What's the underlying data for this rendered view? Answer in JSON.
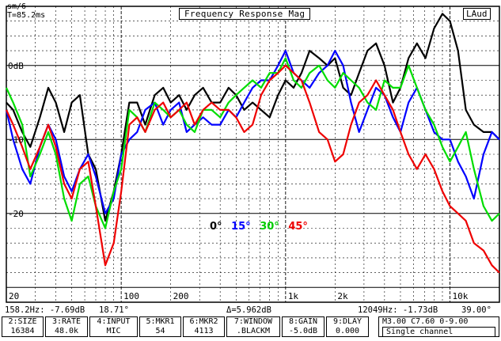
{
  "title": "Frequency Response Mag",
  "mode": "LAud",
  "top_left": {
    "scale": "sm/6",
    "time": "T=85.2ms"
  },
  "legend_colors": {
    "black": "#000000",
    "blue": "#0000ff",
    "green": "#00dd00",
    "red": "#ee0000"
  },
  "chart_data": {
    "type": "line",
    "xscale": "log",
    "xlim": [
      20,
      20000
    ],
    "ylim": [
      -32,
      8
    ],
    "y_tick_labels": [
      {
        "value": 0,
        "label": "0dB"
      },
      {
        "value": -10,
        "label": "-10"
      },
      {
        "value": -20,
        "label": "-20"
      }
    ],
    "x_tick_labels": [
      {
        "value": 20,
        "label": "20"
      },
      {
        "value": 100,
        "label": "100"
      },
      {
        "value": 200,
        "label": "200"
      },
      {
        "value": 1000,
        "label": "1k"
      },
      {
        "value": 2000,
        "label": "2k"
      },
      {
        "value": 10000,
        "label": "10k"
      }
    ],
    "grid": true,
    "legend_position": "center",
    "series": [
      {
        "name": "0°",
        "color": "#000000",
        "x": [
          20,
          22,
          25,
          28,
          32,
          36,
          40,
          45,
          50,
          56,
          63,
          70,
          80,
          90,
          100,
          112,
          125,
          140,
          160,
          180,
          200,
          225,
          250,
          280,
          315,
          355,
          400,
          450,
          500,
          560,
          630,
          710,
          800,
          900,
          1000,
          1120,
          1250,
          1400,
          1600,
          1800,
          2000,
          2240,
          2500,
          2800,
          3150,
          3550,
          4000,
          4500,
          5000,
          5600,
          6300,
          7100,
          8000,
          9000,
          10000,
          11200,
          12500,
          14000,
          16000,
          18000,
          20000
        ],
        "y": [
          -5,
          -6,
          -9,
          -11,
          -7,
          -3,
          -5,
          -9,
          -5,
          -4,
          -12,
          -14,
          -21,
          -17,
          -12,
          -5,
          -5,
          -8,
          -4,
          -3,
          -5,
          -4,
          -6,
          -4,
          -3,
          -5,
          -5,
          -3,
          -4,
          -6,
          -5,
          -6,
          -7,
          -4,
          -2,
          -3,
          -1,
          2,
          1,
          0,
          1,
          -3,
          -4,
          -1,
          2,
          3,
          0,
          -5,
          -3,
          1,
          3,
          1,
          5,
          7,
          6,
          2,
          -6,
          -8,
          -9,
          -9,
          -10
        ]
      },
      {
        "name": "15°",
        "color": "#0000ff",
        "x": [
          20,
          22,
          25,
          28,
          32,
          36,
          40,
          45,
          50,
          56,
          63,
          70,
          80,
          90,
          100,
          112,
          125,
          140,
          160,
          180,
          200,
          225,
          250,
          280,
          315,
          355,
          400,
          450,
          500,
          560,
          630,
          710,
          800,
          900,
          1000,
          1120,
          1250,
          1400,
          1600,
          1800,
          2000,
          2240,
          2500,
          2800,
          3150,
          3550,
          4000,
          4500,
          5000,
          5600,
          6300,
          7100,
          8000,
          9000,
          10000,
          11200,
          12500,
          14000,
          16000,
          18000,
          20000
        ],
        "y": [
          -6,
          -10,
          -14,
          -16,
          -11,
          -8,
          -10,
          -15,
          -17,
          -14,
          -12,
          -15,
          -20,
          -18,
          -12,
          -10,
          -9,
          -6,
          -5,
          -8,
          -6,
          -5,
          -9,
          -8,
          -7,
          -8,
          -8,
          -6,
          -7,
          -5,
          -3,
          -2,
          -2,
          0,
          2,
          -1,
          -2,
          -3,
          -1,
          0,
          2,
          0,
          -5,
          -9,
          -6,
          -3,
          -4,
          -7,
          -9,
          -5,
          -3,
          -6,
          -9,
          -10,
          -10,
          -13,
          -15,
          -18,
          -12,
          -9,
          -10
        ]
      },
      {
        "name": "30°",
        "color": "#00dd00",
        "x": [
          20,
          22,
          25,
          28,
          32,
          36,
          40,
          45,
          50,
          56,
          63,
          70,
          80,
          90,
          100,
          112,
          125,
          140,
          160,
          180,
          200,
          225,
          250,
          280,
          315,
          355,
          400,
          450,
          500,
          560,
          630,
          710,
          800,
          900,
          1000,
          1120,
          1250,
          1400,
          1600,
          1800,
          2000,
          2240,
          2500,
          2800,
          3150,
          3550,
          4000,
          4500,
          5000,
          5600,
          6300,
          7100,
          8000,
          9000,
          10000,
          11200,
          12500,
          14000,
          16000,
          18000,
          20000
        ],
        "y": [
          -3,
          -5,
          -8,
          -15,
          -12,
          -9,
          -12,
          -18,
          -21,
          -16,
          -15,
          -19,
          -22,
          -17,
          -14,
          -6,
          -7,
          -9,
          -5,
          -6,
          -7,
          -6,
          -8,
          -9,
          -6,
          -6,
          -7,
          -5,
          -4,
          -3,
          -2,
          -3,
          -1,
          -1,
          1,
          -2,
          -3,
          -1,
          0,
          -2,
          -3,
          -1,
          -2,
          -3,
          -5,
          -6,
          -2,
          -3,
          -3,
          0,
          -3,
          -6,
          -8,
          -11,
          -13,
          -11,
          -9,
          -14,
          -19,
          -21,
          -20
        ]
      },
      {
        "name": "45°",
        "color": "#ee0000",
        "x": [
          20,
          22,
          25,
          28,
          32,
          36,
          40,
          45,
          50,
          56,
          63,
          70,
          80,
          90,
          100,
          112,
          125,
          140,
          160,
          180,
          200,
          225,
          250,
          280,
          315,
          355,
          400,
          450,
          500,
          560,
          630,
          710,
          800,
          900,
          1000,
          1120,
          1250,
          1400,
          1600,
          1800,
          2000,
          2240,
          2500,
          2800,
          3150,
          3550,
          4000,
          4500,
          5000,
          5600,
          6300,
          7100,
          8000,
          9000,
          10000,
          11200,
          12500,
          14000,
          16000,
          18000,
          20000
        ],
        "y": [
          -6,
          -8,
          -11,
          -14,
          -11,
          -8,
          -11,
          -16,
          -18,
          -14,
          -13,
          -19,
          -27,
          -24,
          -17,
          -8,
          -7,
          -9,
          -6,
          -5,
          -7,
          -6,
          -5,
          -8,
          -6,
          -5,
          -6,
          -6,
          -7,
          -9,
          -8,
          -4,
          -2,
          -1,
          0,
          -1,
          -2,
          -5,
          -9,
          -10,
          -13,
          -12,
          -8,
          -5,
          -4,
          -2,
          -4,
          -6,
          -9,
          -12,
          -14,
          -12,
          -14,
          -17,
          -19,
          -20,
          -21,
          -24,
          -25,
          -27,
          -28
        ]
      }
    ]
  },
  "readout": {
    "cursor1": "158.2Hz: -7.69dB",
    "cursor1_phase": "18.71°",
    "delta": "Δ=5.962dB",
    "cursor2": "12049Hz: -1.73dB",
    "cursor2_phase": "39.00°"
  },
  "params": [
    {
      "label": "2:SIZE",
      "value": "16384"
    },
    {
      "label": "3:RATE",
      "value": "48.0k"
    },
    {
      "label": "4:INPUT",
      "value": "MIC"
    },
    {
      "label": "5:MKR1",
      "value": "54"
    },
    {
      "label": "6:MKR2",
      "value": "4113"
    },
    {
      "label": "7:WINDOW",
      "value": ".BLACKM"
    },
    {
      "label": "8:GAIN",
      "value": "-5.0dB"
    },
    {
      "label": "9:DLAY",
      "value": "0.000"
    }
  ],
  "right_box": {
    "line1": "M3.00 C7.60 0-9.00",
    "line2": "Single channel"
  }
}
